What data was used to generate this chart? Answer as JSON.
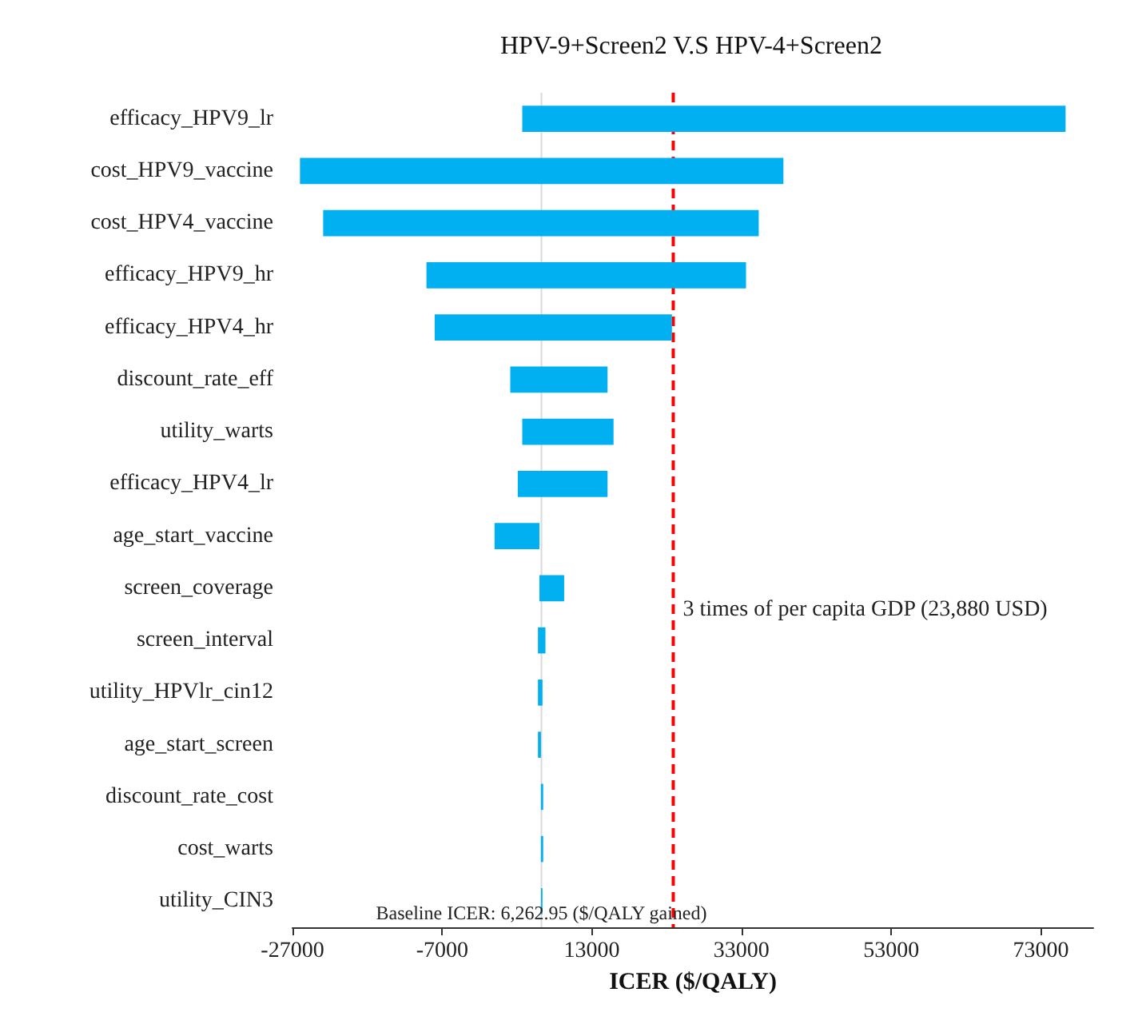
{
  "chart_data": {
    "type": "bar",
    "orientation": "horizontal",
    "title": "HPV-9+Screen2 V.S HPV-4+Screen2",
    "xlabel": "ICER ($/QALY)",
    "categories": [
      "efficacy_HPV9_lr",
      "cost_HPV9_vaccine",
      "cost_HPV4_vaccine",
      "efficacy_HPV9_hr",
      "efficacy_HPV4_hr",
      "discount_rate_eff",
      "utility_warts",
      "efficacy_HPV4_lr",
      "age_start_vaccine",
      "screen_coverage",
      "screen_interval",
      "utility_HPVlr_cin12",
      "age_start_screen",
      "discount_rate_cost",
      "cost_warts",
      "utility_CIN3"
    ],
    "base": [
      3700,
      -26000,
      -22900,
      -9100,
      -8000,
      2100,
      3700,
      3100,
      0,
      6000,
      5800,
      5800,
      5800,
      6200,
      6200,
      6200
    ],
    "values": [
      72600,
      64600,
      58200,
      42700,
      31700,
      13000,
      12200,
      12000,
      6000,
      3300,
      1000,
      600,
      400,
      300,
      300,
      200
    ],
    "color": "#00b0f0",
    "xlim": [
      -27000,
      80000
    ],
    "xticks": [
      -27000,
      -7000,
      13000,
      33000,
      53000,
      73000
    ],
    "grid": false,
    "ref_lines": [
      {
        "axis": "x",
        "value": 6262.95,
        "label": "Baseline ICER: 6,262.95 ($/QALY gained)",
        "color": "#d9d9d9",
        "line_style": "solid"
      },
      {
        "axis": "x",
        "value": 23880,
        "label": "3 times of per capita GDP (23,880 USD)",
        "color": "#ff0000",
        "line_style": "dashed"
      }
    ]
  }
}
